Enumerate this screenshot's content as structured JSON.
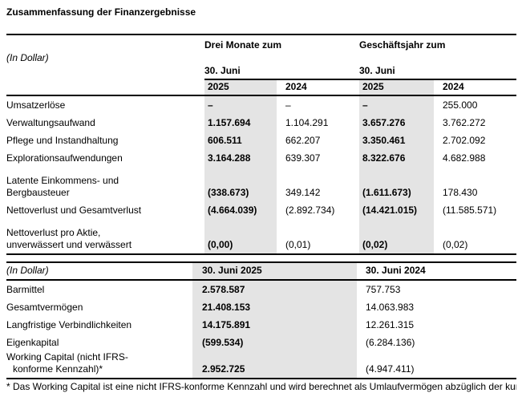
{
  "title": "Zusammenfassung der Finanzergebnisse",
  "colors": {
    "shade": "#e4e4e4",
    "border": "#000000",
    "text": "#000000"
  },
  "table1": {
    "unit_label": "(In Dollar)",
    "group1_header": "Drei Monate zum",
    "group2_header": "Geschäftsjahr zum",
    "group1_subheader": "30. Juni",
    "group2_subheader": "30. Juni",
    "years": {
      "g1y1": "2025",
      "g1y2": "2024",
      "g2y1": "2025",
      "g2y2": "2024"
    },
    "rows": [
      {
        "line1": "Umsatzerlöse",
        "v1": "–",
        "v2": "–",
        "v3": "–",
        "v4": "255.000"
      },
      {
        "line1": "Verwaltungsaufwand",
        "v1": "1.157.694",
        "v2": "1.104.291",
        "v3": "3.657.276",
        "v4": "3.762.272"
      },
      {
        "line1": "Pflege und Instandhaltung",
        "v1": "606.511",
        "v2": "662.207",
        "v3": "3.350.461",
        "v4": "2.702.092"
      },
      {
        "line1": "Explorationsaufwendungen",
        "v1": "3.164.288",
        "v2": "639.307",
        "v3": "8.322.676",
        "v4": "4.682.988"
      },
      {
        "line1": "Latente Einkommens- und",
        "line2": "Bergbausteuer",
        "v1": "(338.673)",
        "v2": "349.142",
        "v3": "(1.611.673)",
        "v4": "178.430"
      },
      {
        "line1": "Nettoverlust und Gesamtverlust",
        "v1": "(4.664.039)",
        "v2": "(2.892.734)",
        "v3": "(14.421.015)",
        "v4": "(11.585.571)"
      },
      {
        "line1": "Nettoverlust pro Aktie,",
        "line2": "unverwässert und verwässert",
        "v1": "(0,00)",
        "v2": "(0,01)",
        "v3": "(0,02)",
        "v4": "(0,02)"
      }
    ]
  },
  "table2": {
    "unit_label": "(In Dollar)",
    "col1_header": "30. Juni 2025",
    "col2_header": "30. Juni 2024",
    "rows": [
      {
        "line1": "Barmittel",
        "v1": "2.578.587",
        "v2": "757.753"
      },
      {
        "line1": "Gesamtvermögen",
        "v1": "21.408.153",
        "v2": "14.063.983"
      },
      {
        "line1": "Langfristige Verbindlichkeiten",
        "v1": "14.175.891",
        "v2": "12.261.315"
      },
      {
        "line1": "Eigenkapital",
        "v1": "(599.534)",
        "v2": "(6.284.136)"
      },
      {
        "line1": "Working Capital (nicht IFRS-",
        "line2": "konforme Kennzahl)*",
        "v1": "2.952.725",
        "v2": "(4.947.411)"
      }
    ]
  },
  "footnote_partial": "* Das Working Capital ist eine nicht IFRS-konforme Kennzahl und wird berechnet als Umlaufvermögen abzüglich der kurzfristigen Verbindlichkeiten."
}
